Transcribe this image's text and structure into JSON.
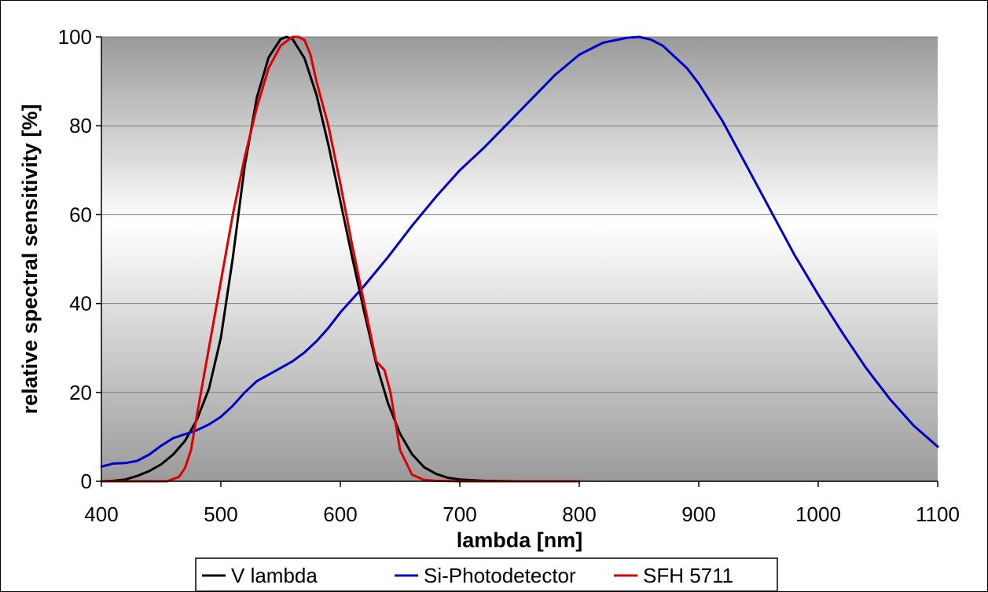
{
  "chart_data": {
    "type": "line",
    "xlabel": "lambda [nm]",
    "ylabel": "relative spectral sensitivity [%]",
    "xlim": [
      400,
      1100
    ],
    "ylim": [
      0,
      100
    ],
    "x_ticks": [
      400,
      500,
      600,
      700,
      800,
      900,
      1000,
      1100
    ],
    "y_ticks": [
      0,
      20,
      40,
      60,
      80,
      100
    ],
    "grid": "horizontal",
    "legend_position": "bottom",
    "series": [
      {
        "name": "V lambda",
        "color": "#000000",
        "x": [
          400,
          410,
          420,
          430,
          440,
          450,
          460,
          470,
          480,
          490,
          500,
          510,
          520,
          530,
          540,
          550,
          555,
          560,
          570,
          580,
          590,
          600,
          610,
          620,
          630,
          640,
          650,
          660,
          670,
          680,
          690,
          700,
          720,
          750
        ],
        "y": [
          0,
          0.1,
          0.4,
          1.2,
          2.3,
          3.8,
          6.0,
          9.1,
          13.9,
          20.8,
          32.3,
          50.3,
          71.0,
          86.2,
          95.4,
          99.5,
          100,
          99.5,
          95.2,
          87.0,
          75.7,
          63.1,
          50.3,
          38.1,
          26.5,
          17.5,
          10.7,
          6.1,
          3.2,
          1.7,
          0.8,
          0.4,
          0.1,
          0
        ]
      },
      {
        "name": "Si-Photodetector",
        "color": "#0000cc",
        "x": [
          400,
          410,
          420,
          430,
          440,
          450,
          460,
          470,
          480,
          490,
          500,
          510,
          520,
          530,
          540,
          550,
          560,
          570,
          580,
          590,
          600,
          620,
          640,
          660,
          680,
          700,
          720,
          740,
          760,
          780,
          800,
          820,
          840,
          850,
          860,
          870,
          880,
          890,
          900,
          920,
          940,
          960,
          980,
          1000,
          1020,
          1040,
          1060,
          1080,
          1100
        ],
        "y": [
          3.3,
          4.0,
          4.1,
          4.6,
          6.0,
          8.0,
          9.7,
          10.6,
          11.5,
          12.8,
          14.5,
          17.0,
          20.0,
          22.5,
          24.0,
          25.5,
          27.0,
          29.0,
          31.5,
          34.5,
          38.0,
          44.0,
          50.5,
          57.5,
          64.0,
          70.0,
          75.0,
          80.5,
          86.0,
          91.5,
          96.0,
          98.7,
          99.8,
          100,
          99.4,
          98.0,
          95.5,
          93.0,
          89.5,
          81.0,
          71.0,
          61.0,
          51.0,
          42.0,
          33.5,
          25.5,
          18.5,
          12.5,
          7.8
        ]
      },
      {
        "name": "SFH 5711",
        "color": "#dd0000",
        "x": [
          400,
          455,
          460,
          465,
          470,
          475,
          480,
          490,
          500,
          510,
          520,
          530,
          540,
          550,
          560,
          565,
          570,
          575,
          580,
          590,
          600,
          610,
          620,
          630,
          637,
          642,
          650,
          660,
          670,
          680,
          700,
          730,
          800
        ],
        "y": [
          0,
          0,
          0.5,
          1.0,
          3.0,
          7.0,
          15.0,
          30.0,
          45.0,
          60.0,
          73.0,
          84.0,
          93.0,
          98.0,
          100,
          100,
          99.3,
          96.0,
          90.0,
          80.0,
          67.0,
          53.0,
          40.0,
          27.0,
          25.0,
          20.0,
          7.0,
          1.5,
          0.3,
          0.1,
          0,
          0,
          0
        ]
      }
    ]
  }
}
